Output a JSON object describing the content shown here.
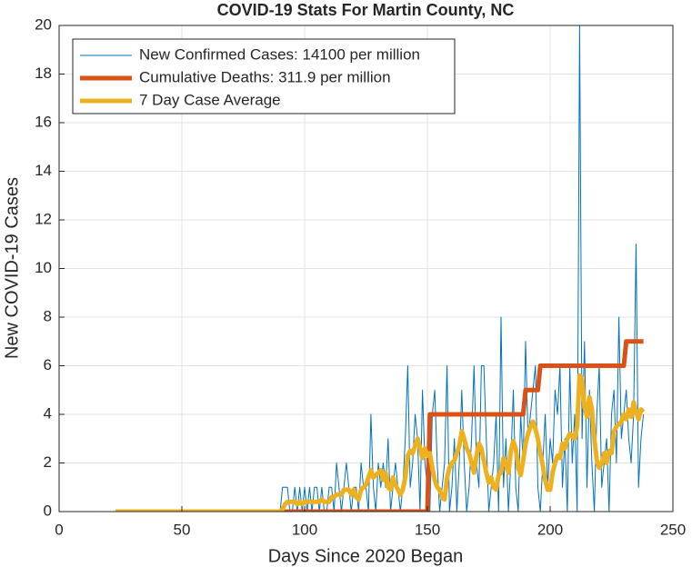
{
  "chart_data": {
    "type": "line",
    "title": "COVID-19 Stats For Martin County, NC",
    "xlabel": "Days Since 2020 Began",
    "ylabel": "New COVID-19 Cases",
    "xlim": [
      0,
      250
    ],
    "xticks": [
      0,
      50,
      100,
      150,
      200,
      250
    ],
    "ylim": [
      0,
      20
    ],
    "yticks": [
      0,
      2,
      4,
      6,
      8,
      10,
      12,
      14,
      16,
      18,
      20
    ],
    "grid": true,
    "legend": "northwest",
    "x": [
      23,
      24,
      25,
      26,
      27,
      28,
      29,
      30,
      31,
      32,
      33,
      34,
      35,
      36,
      37,
      38,
      39,
      40,
      41,
      42,
      43,
      44,
      45,
      46,
      47,
      48,
      49,
      50,
      51,
      52,
      53,
      54,
      55,
      56,
      57,
      58,
      59,
      60,
      61,
      62,
      63,
      64,
      65,
      66,
      67,
      68,
      69,
      70,
      71,
      72,
      73,
      74,
      75,
      76,
      77,
      78,
      79,
      80,
      81,
      82,
      83,
      84,
      85,
      86,
      87,
      88,
      89,
      90,
      91,
      92,
      93,
      94,
      95,
      96,
      97,
      98,
      99,
      100,
      101,
      102,
      103,
      104,
      105,
      106,
      107,
      108,
      109,
      110,
      111,
      112,
      113,
      114,
      115,
      116,
      117,
      118,
      119,
      120,
      121,
      122,
      123,
      124,
      125,
      126,
      127,
      128,
      129,
      130,
      131,
      132,
      133,
      134,
      135,
      136,
      137,
      138,
      139,
      140,
      141,
      142,
      143,
      144,
      145,
      146,
      147,
      148,
      149,
      150,
      151,
      152,
      153,
      154,
      155,
      156,
      157,
      158,
      159,
      160,
      161,
      162,
      163,
      164,
      165,
      166,
      167,
      168,
      169,
      170,
      171,
      172,
      173,
      174,
      175,
      176,
      177,
      178,
      179,
      180,
      181,
      182,
      183,
      184,
      185,
      186,
      187,
      188,
      189,
      190,
      191,
      192,
      193,
      194,
      195,
      196,
      197,
      198,
      199,
      200,
      201,
      202,
      203,
      204,
      205,
      206,
      207,
      208,
      209,
      210,
      211,
      212,
      213,
      214,
      215,
      216,
      217,
      218,
      219,
      220,
      221,
      222,
      223,
      224,
      225,
      226,
      227,
      228,
      229,
      230,
      231,
      232,
      233,
      234,
      235,
      236,
      237,
      238
    ],
    "series": [
      {
        "name": "New Confirmed Cases: 14100 per million",
        "color": "#0072bd",
        "width": 1,
        "values": [
          0,
          0,
          0,
          0,
          0,
          0,
          0,
          0,
          0,
          0,
          0,
          0,
          0,
          0,
          0,
          0,
          0,
          0,
          0,
          0,
          0,
          0,
          0,
          0,
          0,
          0,
          0,
          0,
          0,
          0,
          0,
          0,
          0,
          0,
          0,
          0,
          0,
          0,
          0,
          0,
          0,
          0,
          0,
          0,
          0,
          0,
          0,
          0,
          0,
          0,
          0,
          0,
          0,
          0,
          0,
          0,
          0,
          0,
          0,
          0,
          0,
          0,
          0,
          0,
          0,
          0,
          0,
          0,
          1,
          1,
          1,
          0,
          0,
          1,
          0,
          1,
          0,
          1,
          0,
          1,
          0,
          1,
          1,
          0,
          1,
          0,
          0,
          1,
          1,
          0,
          2,
          1,
          0,
          1,
          2,
          1,
          0,
          1,
          1,
          0,
          2,
          1,
          1,
          0,
          4,
          1,
          0,
          2,
          1,
          2,
          1,
          3,
          0,
          1,
          2,
          1,
          0,
          1,
          3,
          6,
          1,
          2,
          4,
          3,
          0,
          5,
          2,
          1,
          0,
          4,
          5,
          2,
          0,
          1,
          2,
          6,
          0,
          1,
          3,
          0,
          2,
          5,
          2,
          0,
          1,
          3,
          6,
          2,
          1,
          6,
          6,
          3,
          0,
          1,
          2,
          4,
          0,
          8,
          1,
          3,
          0,
          2,
          5,
          1,
          0,
          4,
          2,
          7,
          3,
          4,
          5,
          6,
          1,
          0,
          2,
          4,
          1,
          3,
          2,
          5,
          4,
          6,
          1,
          3,
          0,
          6,
          2,
          4,
          0,
          20,
          3,
          7,
          1,
          5,
          2,
          0,
          4,
          6,
          1,
          2,
          3,
          0,
          4,
          5,
          2,
          8,
          3,
          4,
          5,
          3,
          2,
          4,
          11,
          1,
          3,
          4
        ]
      },
      {
        "name": "Cumulative Deaths: 311.9 per million",
        "color": "#d95319",
        "width": 5,
        "values": [
          null,
          null,
          null,
          null,
          null,
          null,
          null,
          null,
          null,
          null,
          null,
          null,
          null,
          null,
          null,
          null,
          null,
          null,
          null,
          null,
          null,
          null,
          null,
          null,
          null,
          null,
          null,
          null,
          null,
          null,
          null,
          null,
          null,
          null,
          null,
          null,
          null,
          null,
          null,
          null,
          null,
          null,
          null,
          null,
          null,
          null,
          null,
          null,
          null,
          null,
          null,
          null,
          null,
          null,
          null,
          null,
          null,
          null,
          null,
          null,
          null,
          null,
          null,
          null,
          null,
          null,
          null,
          null,
          0,
          0,
          0,
          0,
          0,
          0,
          0,
          0,
          0,
          0,
          0,
          0,
          0,
          0,
          0,
          0,
          0,
          0,
          0,
          0,
          0,
          0,
          0,
          0,
          0,
          0,
          0,
          0,
          0,
          0,
          0,
          0,
          0,
          0,
          0,
          0,
          0,
          0,
          0,
          0,
          0,
          0,
          0,
          0,
          0,
          0,
          0,
          0,
          0,
          0,
          0,
          0,
          0,
          0,
          0,
          0,
          0,
          0,
          0,
          0,
          4,
          4,
          4,
          4,
          4,
          4,
          4,
          4,
          4,
          4,
          4,
          4,
          4,
          4,
          4,
          4,
          4,
          4,
          4,
          4,
          4,
          4,
          4,
          4,
          4,
          4,
          4,
          4,
          4,
          4,
          4,
          4,
          4,
          4,
          4,
          4,
          4,
          4,
          4,
          5,
          5,
          5,
          5,
          5,
          5,
          6,
          6,
          6,
          6,
          6,
          6,
          6,
          6,
          6,
          6,
          6,
          6,
          6,
          6,
          6,
          6,
          6,
          6,
          6,
          6,
          6,
          6,
          6,
          6,
          6,
          6,
          6,
          6,
          6,
          6,
          6,
          6,
          6,
          6,
          6,
          7,
          7,
          7,
          7,
          7,
          7,
          7,
          7
        ]
      },
      {
        "name": "7 Day Case Average",
        "color": "#edb120",
        "width": 5,
        "values": [
          0,
          0,
          0,
          0,
          0,
          0,
          0,
          0,
          0,
          0,
          0,
          0,
          0,
          0,
          0,
          0,
          0,
          0,
          0,
          0,
          0,
          0,
          0,
          0,
          0,
          0,
          0,
          0,
          0,
          0,
          0,
          0,
          0,
          0,
          0,
          0,
          0,
          0,
          0,
          0,
          0,
          0,
          0,
          0,
          0,
          0,
          0,
          0,
          0,
          0,
          0,
          0,
          0,
          0,
          0,
          0,
          0,
          0,
          0,
          0,
          0,
          0,
          0,
          0,
          0,
          0,
          0,
          0,
          0.1,
          0.3,
          0.4,
          0.4,
          0.4,
          0.4,
          0.3,
          0.4,
          0.3,
          0.4,
          0.4,
          0.4,
          0.4,
          0.4,
          0.4,
          0.4,
          0.5,
          0.4,
          0.4,
          0.4,
          0.6,
          0.6,
          0.7,
          0.7,
          0.7,
          0.9,
          0.9,
          0.9,
          0.7,
          0.9,
          0.6,
          0.5,
          0.9,
          1.0,
          1.1,
          1.4,
          1.7,
          1.4,
          1.5,
          1.6,
          1.7,
          1.3,
          1.6,
          1.0,
          0.9,
          1.4,
          1.1,
          0.9,
          0.7,
          0.9,
          1.4,
          2.3,
          2.5,
          2.4,
          2.7,
          3.0,
          2.6,
          2.2,
          2.6,
          2.3,
          2.4,
          1.8,
          1.3,
          1.0,
          0.9,
          0.6,
          0.5,
          1.4,
          1.8,
          2.0,
          2.1,
          2.4,
          2.7,
          3.3,
          3.0,
          2.6,
          2.4,
          2.0,
          1.6,
          2.3,
          2.8,
          2.6,
          2.1,
          1.6,
          1.2,
          1.4,
          1.0,
          0.9,
          1.5,
          1.6,
          2.2,
          2.0,
          1.6,
          2.5,
          2.9,
          2.6,
          1.8,
          1.5,
          2.1,
          2.8,
          3.2,
          3.5,
          3.7,
          3.4,
          3.0,
          2.4,
          1.9,
          1.3,
          0.9,
          0.9,
          1.6,
          2.0,
          2.3,
          2.2,
          2.8,
          2.6,
          3.0,
          3.2,
          3.1,
          3.0,
          3.5,
          5.6,
          5.5,
          4.3,
          3.9,
          4.7,
          4.2,
          3.0,
          2.1,
          1.8,
          2.0,
          2.4,
          2.0,
          2.5,
          2.4,
          3.3,
          3.5,
          3.6,
          3.7,
          4.0,
          3.8,
          4.2,
          3.9,
          4.5,
          4.1,
          3.8,
          4.2,
          4.1
        ]
      }
    ]
  }
}
